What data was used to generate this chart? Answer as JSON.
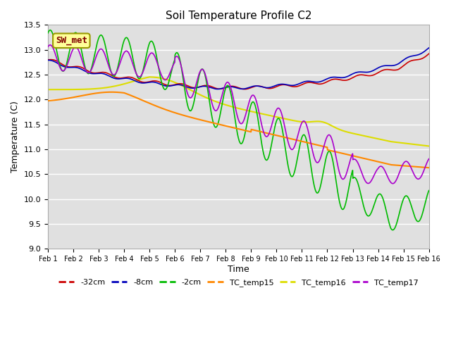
{
  "title": "Soil Temperature Profile C2",
  "xlabel": "Time",
  "ylabel": "Temperature (C)",
  "ylim": [
    9.0,
    13.5
  ],
  "xlim": [
    0,
    15
  ],
  "background_color": "#ffffff",
  "plot_bg_color": "#e0e0e0",
  "grid_color": "#ffffff",
  "annotation_text": "SW_met",
  "annotation_bg": "#ffff99",
  "annotation_fg": "#800000",
  "annotation_border": "#999900",
  "series": {
    "-32cm": {
      "color": "#cc0000",
      "lw": 1.2
    },
    "-8cm": {
      "color": "#0000bb",
      "lw": 1.2
    },
    "-2cm": {
      "color": "#00bb00",
      "lw": 1.2
    },
    "TC_temp15": {
      "color": "#ff8800",
      "lw": 1.5
    },
    "TC_temp16": {
      "color": "#dddd00",
      "lw": 1.5
    },
    "TC_temp17": {
      "color": "#aa00cc",
      "lw": 1.2
    }
  },
  "tick_labels": [
    "Feb 1",
    "Feb 2",
    "Feb 3",
    "Feb 4",
    "Feb 5",
    "Feb 6",
    "Feb 7",
    "Feb 8",
    "Feb 9",
    "Feb 10",
    "Feb 11",
    "Feb 12",
    "Feb 13",
    "Feb 14",
    "Feb 15",
    "Feb 16"
  ],
  "yticks": [
    9.0,
    9.5,
    10.0,
    10.5,
    11.0,
    11.5,
    12.0,
    12.5,
    13.0,
    13.5
  ]
}
